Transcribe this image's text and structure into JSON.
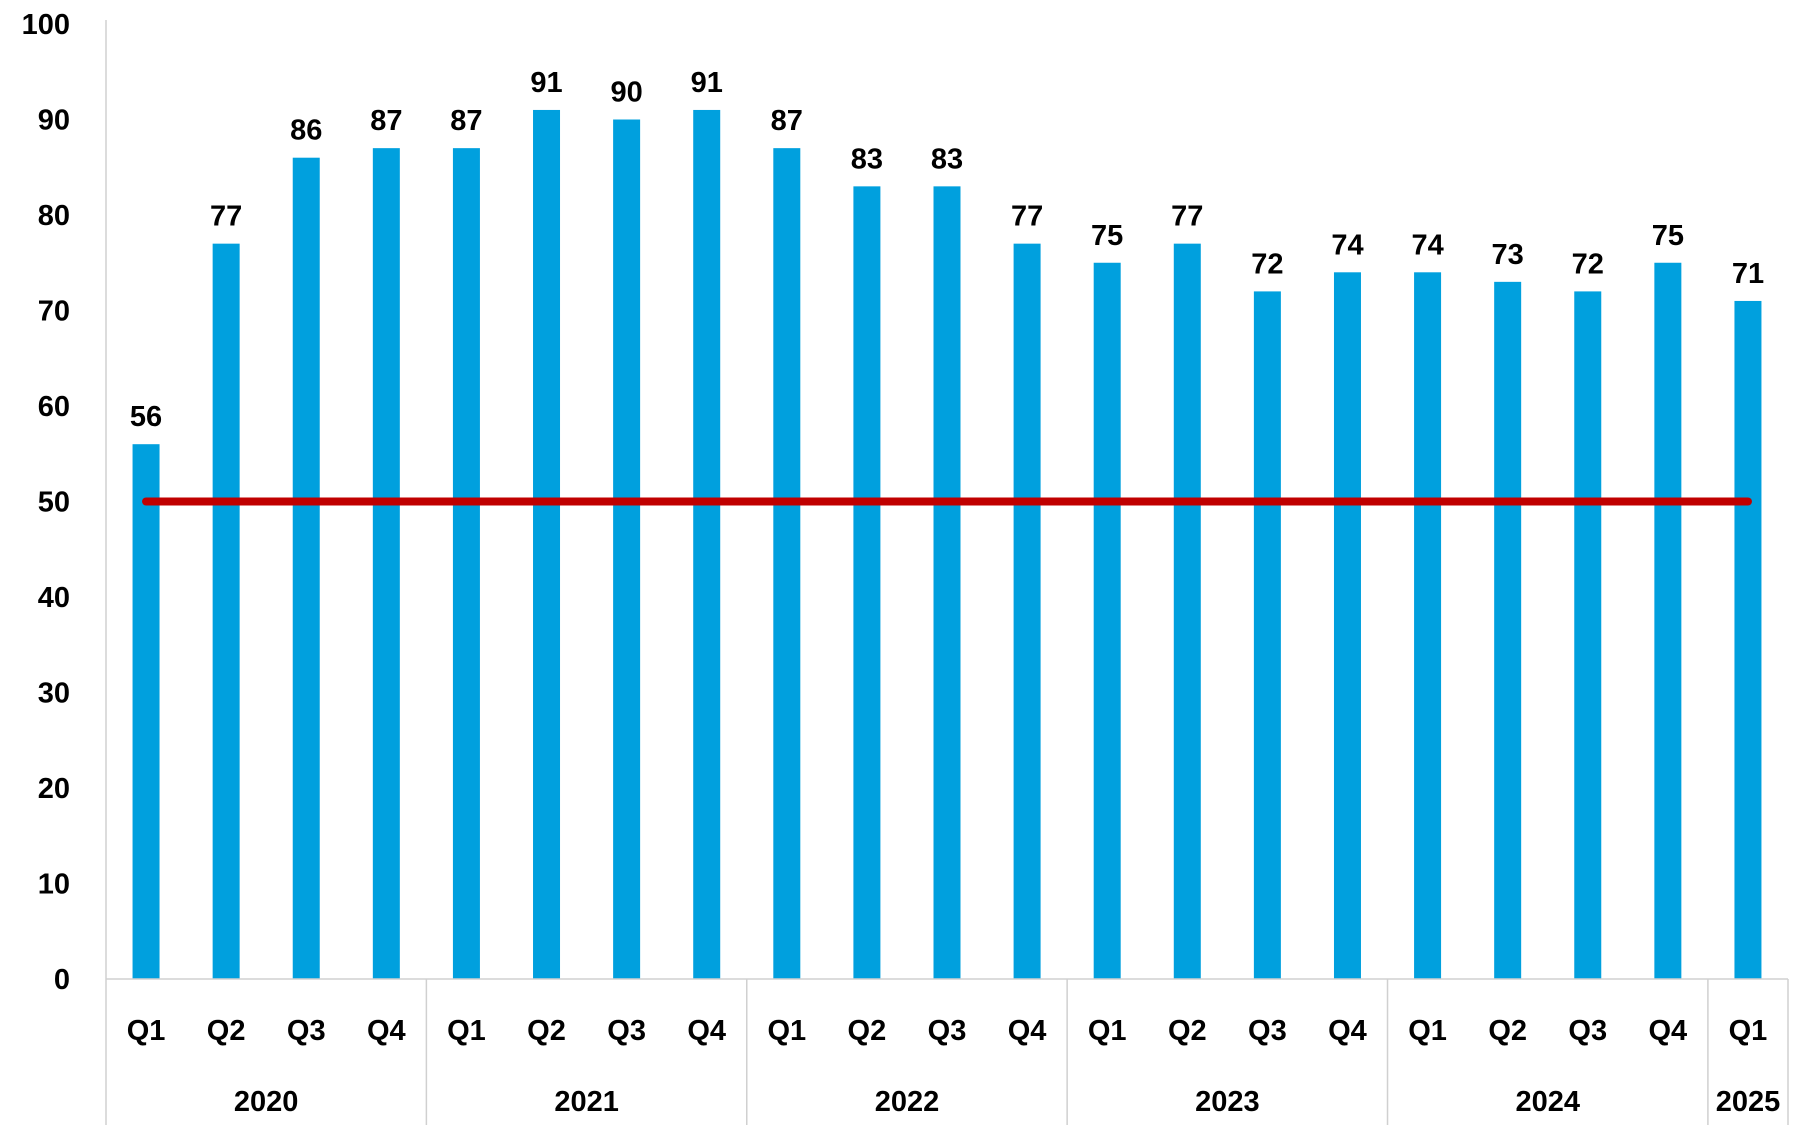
{
  "chart_data": {
    "type": "bar",
    "title": "",
    "xlabel": "",
    "ylabel": "",
    "ylim": [
      0,
      100
    ],
    "yticks": [
      0,
      10,
      20,
      30,
      40,
      50,
      60,
      70,
      80,
      90,
      100
    ],
    "categories": [
      "Q1",
      "Q2",
      "Q3",
      "Q4",
      "Q1",
      "Q2",
      "Q3",
      "Q4",
      "Q1",
      "Q2",
      "Q3",
      "Q4",
      "Q1",
      "Q2",
      "Q3",
      "Q4",
      "Q1",
      "Q2",
      "Q3",
      "Q4",
      "Q1"
    ],
    "groups": [
      {
        "label": "2020",
        "count": 4
      },
      {
        "label": "2021",
        "count": 4
      },
      {
        "label": "2022",
        "count": 4
      },
      {
        "label": "2023",
        "count": 4
      },
      {
        "label": "2024",
        "count": 4
      },
      {
        "label": "2025",
        "count": 1
      }
    ],
    "series": [
      {
        "type": "bar",
        "color": "#00A0DE",
        "values": [
          56,
          77,
          86,
          87,
          87,
          91,
          90,
          91,
          87,
          83,
          83,
          77,
          75,
          77,
          72,
          74,
          74,
          73,
          72,
          75,
          71
        ],
        "data_labels": true
      },
      {
        "type": "line",
        "color": "#C00000",
        "values": [
          50,
          50,
          50,
          50,
          50,
          50,
          50,
          50,
          50,
          50,
          50,
          50,
          50,
          50,
          50,
          50,
          50,
          50,
          50,
          50,
          50
        ]
      }
    ],
    "grid": false,
    "legend": "none"
  }
}
